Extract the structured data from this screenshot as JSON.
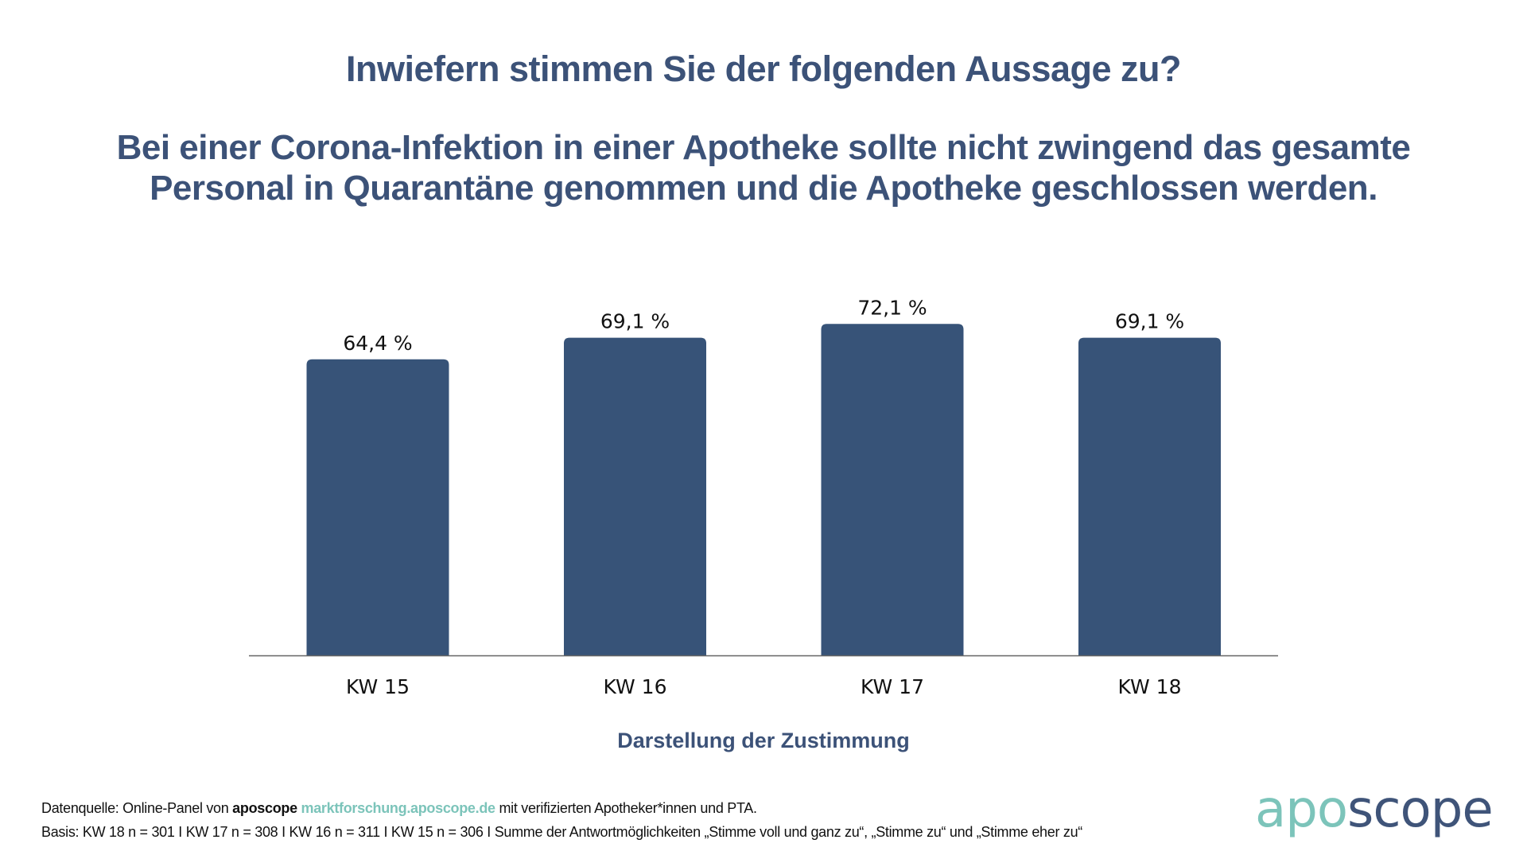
{
  "header": {
    "question": "Inwiefern stimmen Sie der folgenden Aussage zu?",
    "statement_line1": "Bei einer Corona-Infektion in einer Apotheke sollte nicht zwingend das gesamte",
    "statement_line2": "Personal in Quarantäne genommen und die Apotheke geschlossen werden."
  },
  "colors": {
    "title": "#3c5278",
    "bar": "#375378",
    "axis": "#666666",
    "brand_teal": "#7cc4ba",
    "brand_navy": "#3f5479"
  },
  "chart_data": {
    "type": "bar",
    "title": "Inwiefern stimmen Sie der folgenden Aussage zu? Bei einer Corona-Infektion in einer Apotheke sollte nicht zwingend das gesamte Personal in Quarantäne genommen und die Apotheke geschlossen werden.",
    "categories": [
      "KW 15",
      "KW 16",
      "KW 17",
      "KW 18"
    ],
    "values": [
      64.4,
      69.1,
      72.1,
      69.1
    ],
    "value_labels": [
      "64,4 %",
      "69,1 %",
      "72,1 %",
      "69,1 %"
    ],
    "unit": "%",
    "xlabel": "Darstellung der Zustimmung",
    "ylabel": "",
    "ylim": [
      0,
      100
    ],
    "grid": false,
    "legend": "none",
    "y_axis_visible": false
  },
  "footer": {
    "source_prefix": "Datenquelle: Online-Panel von ",
    "source_brand": "aposcope",
    "source_link": "marktforschung.aposcope.de",
    "source_suffix": " mit verifizierten Apotheker*innen und PTA.",
    "basis": "Basis: KW 18 n = 301 I KW 17 n = 308 I KW 16 n = 311 I KW 15 n = 306 I Summe der Antwortmöglichkeiten „Stimme voll und ganz zu“, „Stimme zu“ und „Stimme eher zu“"
  },
  "logo": {
    "part1": "apo",
    "part2": "scope"
  }
}
